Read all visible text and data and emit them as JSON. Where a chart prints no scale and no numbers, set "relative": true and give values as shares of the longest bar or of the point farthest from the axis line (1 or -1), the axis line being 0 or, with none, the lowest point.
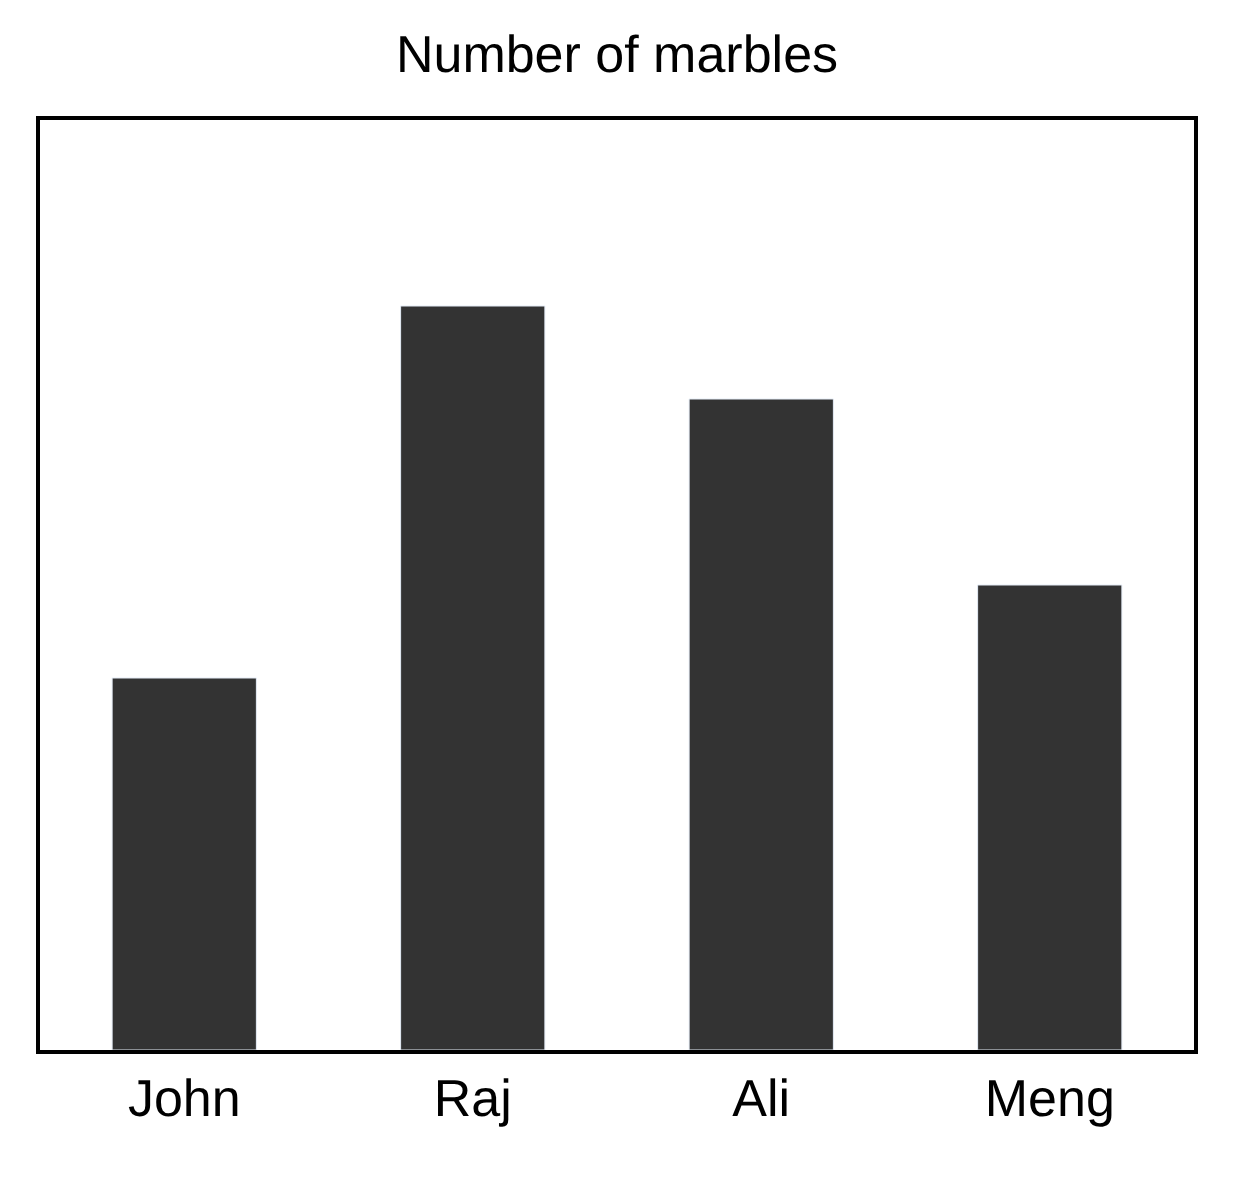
{
  "chart_data": {
    "type": "bar",
    "title": "Number of marbles",
    "categories": [
      "John",
      "Raj",
      "Ali",
      "Meng"
    ],
    "values": [
      0.5,
      1,
      0.875,
      0.625
    ],
    "color": "#333333",
    "relative": true
  }
}
